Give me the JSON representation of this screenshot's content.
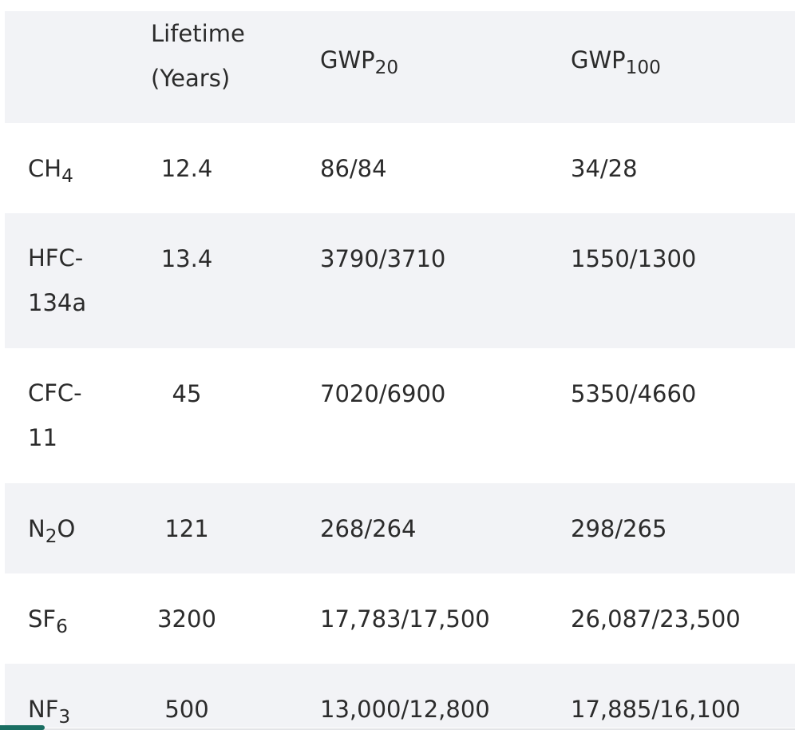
{
  "table": {
    "headers": {
      "lifetime_line1": "Lifetime",
      "lifetime_line2": "(Years)",
      "gwp20_base": "GWP",
      "gwp20_sub": "20",
      "gwp100_base": "GWP",
      "gwp100_sub": "100"
    },
    "rows": [
      {
        "gas_base": "CH",
        "gas_sub": "4",
        "gas_tail": "",
        "lifetime": "12.4",
        "gwp20": "86/84",
        "gwp100": "34/28"
      },
      {
        "gas_line1": "HFC-",
        "gas_line2": "134a",
        "lifetime": "13.4",
        "gwp20": "3790/3710",
        "gwp100": "1550/1300"
      },
      {
        "gas_line1": "CFC-",
        "gas_line2": "11",
        "lifetime": "45",
        "gwp20": "7020/6900",
        "gwp100": "5350/4660"
      },
      {
        "gas_base": "N",
        "gas_sub": "2",
        "gas_tail": "O",
        "lifetime": "121",
        "gwp20": "268/264",
        "gwp100": "298/265"
      },
      {
        "gas_base": "SF",
        "gas_sub": "6",
        "gas_tail": "",
        "lifetime": "3200",
        "gwp20": "17,783/17,500",
        "gwp100": "26,087/23,500"
      },
      {
        "gas_base": "NF",
        "gas_sub": "3",
        "gas_tail": "",
        "lifetime": "500",
        "gwp20": "13,000/12,800",
        "gwp100": "17,885/16,100"
      }
    ]
  },
  "colors": {
    "row_alt": "#f2f3f6",
    "text": "#2b2b2b",
    "scroll_indicator": "#1a6e62"
  }
}
